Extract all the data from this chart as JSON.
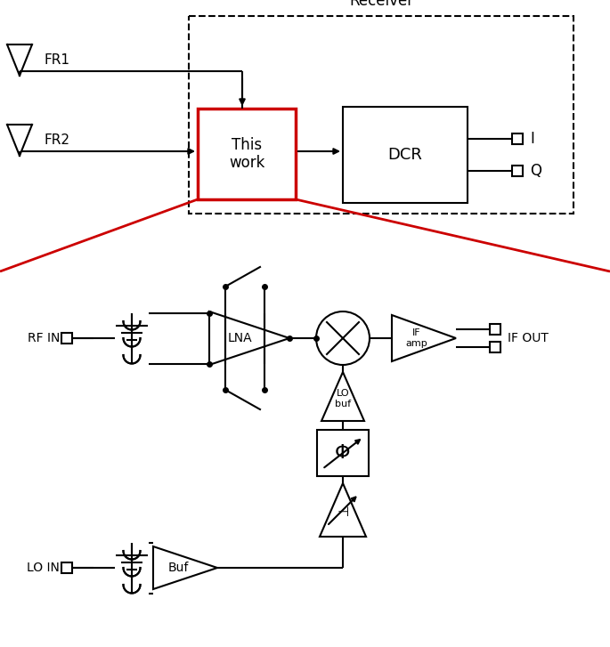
{
  "fig_width": 6.85,
  "fig_height": 7.27,
  "bg_color": "#ffffff",
  "black": "#000000",
  "red": "#cc0000",
  "receiver_label": "Receiver",
  "fr1_label": "FR1",
  "fr2_label": "FR2",
  "this_work_label": "This\nwork",
  "dcr_label": "DCR",
  "i_label": "I",
  "q_label": "Q",
  "rf_in_label": "RF IN",
  "lna_label": "LNA",
  "if_amp_label": "IF\namp",
  "if_out_label": "IF OUT",
  "lo_buf_label": "LO\nbuf",
  "phi_label": "Φ",
  "lo_in_label": "LO IN",
  "buf_label": "Buf"
}
